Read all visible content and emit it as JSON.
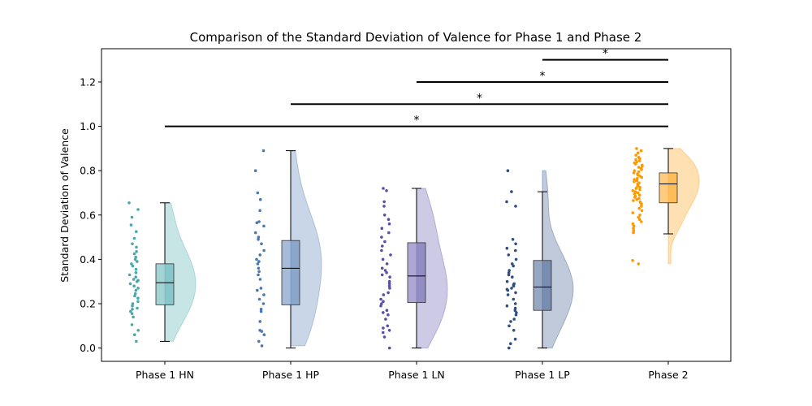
{
  "chart_data": {
    "type": "raincloud",
    "title": "Comparison of the Standard Deviation of Valence for Phase 1 and Phase 2",
    "xlabel": "",
    "ylabel": "Standard Deviation of Valence",
    "ylim": [
      -0.06,
      1.35
    ],
    "yticks": [
      "0.0",
      "0.2",
      "0.4",
      "0.6",
      "0.8",
      "1.0",
      "1.2"
    ],
    "grid": false,
    "categories": [
      "Phase 1 HN",
      "Phase 1 HP",
      "Phase 1 LN",
      "Phase 1 LP",
      "Phase 2"
    ],
    "series": [
      {
        "category": "Phase 1 HN",
        "color": "#4aa8ad",
        "box": {
          "min": 0.03,
          "q1": 0.195,
          "median": 0.295,
          "q3": 0.38,
          "max": 0.655
        },
        "points": [
          0.655,
          0.625,
          0.59,
          0.555,
          0.525,
          0.495,
          0.47,
          0.455,
          0.435,
          0.425,
          0.41,
          0.4,
          0.39,
          0.38,
          0.37,
          0.355,
          0.34,
          0.33,
          0.32,
          0.31,
          0.305,
          0.3,
          0.29,
          0.28,
          0.27,
          0.26,
          0.245,
          0.235,
          0.225,
          0.21,
          0.2,
          0.19,
          0.18,
          0.175,
          0.165,
          0.155,
          0.14,
          0.105,
          0.08,
          0.06,
          0.03
        ]
      },
      {
        "category": "Phase 1 HP",
        "color": "#4c78b0",
        "box": {
          "min": 0.0,
          "q1": 0.195,
          "median": 0.36,
          "q3": 0.485,
          "max": 0.89
        },
        "points": [
          0.89,
          0.8,
          0.7,
          0.67,
          0.62,
          0.57,
          0.565,
          0.55,
          0.52,
          0.5,
          0.49,
          0.47,
          0.44,
          0.42,
          0.4,
          0.39,
          0.38,
          0.36,
          0.345,
          0.33,
          0.31,
          0.27,
          0.26,
          0.24,
          0.22,
          0.2,
          0.175,
          0.165,
          0.12,
          0.08,
          0.075,
          0.06,
          0.03,
          0.01
        ]
      },
      {
        "category": "Phase 1 LN",
        "color": "#5a4fa8",
        "box": {
          "min": 0.0,
          "q1": 0.205,
          "median": 0.325,
          "q3": 0.475,
          "max": 0.72
        },
        "points": [
          0.72,
          0.71,
          0.66,
          0.64,
          0.6,
          0.58,
          0.56,
          0.54,
          0.52,
          0.5,
          0.48,
          0.46,
          0.44,
          0.42,
          0.4,
          0.38,
          0.36,
          0.35,
          0.34,
          0.33,
          0.32,
          0.3,
          0.29,
          0.28,
          0.27,
          0.25,
          0.24,
          0.22,
          0.21,
          0.2,
          0.19,
          0.17,
          0.16,
          0.15,
          0.13,
          0.1,
          0.09,
          0.08,
          0.07,
          0.05,
          0.0
        ]
      },
      {
        "category": "Phase 1 LP",
        "color": "#2f4f86",
        "box": {
          "min": 0.0,
          "q1": 0.17,
          "median": 0.275,
          "q3": 0.395,
          "max": 0.705
        },
        "points": [
          0.8,
          0.705,
          0.66,
          0.64,
          0.49,
          0.47,
          0.45,
          0.44,
          0.42,
          0.4,
          0.38,
          0.37,
          0.35,
          0.34,
          0.33,
          0.32,
          0.3,
          0.29,
          0.285,
          0.28,
          0.27,
          0.265,
          0.26,
          0.25,
          0.24,
          0.22,
          0.2,
          0.19,
          0.18,
          0.17,
          0.16,
          0.15,
          0.13,
          0.12,
          0.1,
          0.08,
          0.04,
          0.02,
          0.0
        ]
      },
      {
        "category": "Phase 2",
        "color": "#ff9900",
        "box": {
          "min": 0.515,
          "q1": 0.655,
          "median": 0.74,
          "q3": 0.79,
          "max": 0.9
        },
        "points": [
          0.9,
          0.89,
          0.88,
          0.87,
          0.86,
          0.855,
          0.85,
          0.845,
          0.84,
          0.835,
          0.83,
          0.825,
          0.82,
          0.815,
          0.81,
          0.805,
          0.8,
          0.795,
          0.79,
          0.785,
          0.78,
          0.775,
          0.77,
          0.765,
          0.76,
          0.755,
          0.75,
          0.745,
          0.74,
          0.735,
          0.73,
          0.725,
          0.72,
          0.715,
          0.71,
          0.705,
          0.7,
          0.695,
          0.69,
          0.685,
          0.68,
          0.675,
          0.67,
          0.665,
          0.66,
          0.655,
          0.65,
          0.64,
          0.63,
          0.62,
          0.61,
          0.6,
          0.59,
          0.58,
          0.57,
          0.56,
          0.55,
          0.54,
          0.53,
          0.52,
          0.395,
          0.38
        ]
      }
    ],
    "significance": [
      {
        "from": "Phase 1 HN",
        "to": "Phase 2",
        "y": 1.0,
        "label": "*"
      },
      {
        "from": "Phase 1 HP",
        "to": "Phase 2",
        "y": 1.1,
        "label": "*"
      },
      {
        "from": "Phase 1 LN",
        "to": "Phase 2",
        "y": 1.2,
        "label": "*"
      },
      {
        "from": "Phase 1 LP",
        "to": "Phase 2",
        "y": 1.3,
        "label": "*"
      }
    ]
  }
}
